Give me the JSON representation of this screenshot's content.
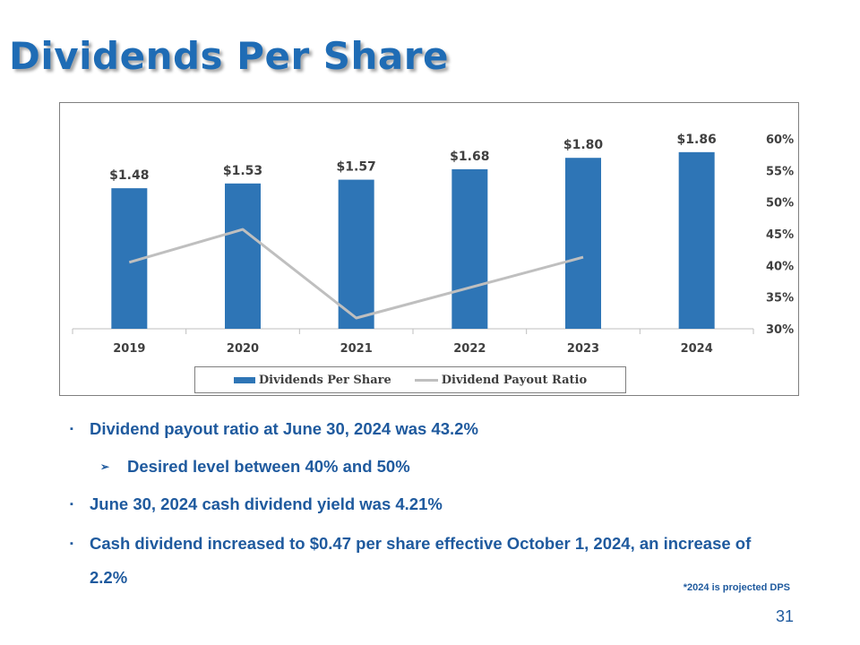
{
  "slide": {
    "title": "Dividends Per Share",
    "bullets": [
      {
        "text": "Dividend payout ratio at June 30, 2024 was 43.2%",
        "level": 1
      },
      {
        "text": "Desired level between 40% and 50%",
        "level": 2
      },
      {
        "text": "June 30, 2024 cash dividend yield was 4.21%",
        "level": 1
      },
      {
        "text": "Cash dividend increased to $0.47 per share effective October 1, 2024, an increase of 2.2%",
        "level": 1
      }
    ],
    "bullet_marks": {
      "level1": "▪",
      "level2": "➢"
    },
    "footnote": "*2024 is projected DPS",
    "page_number": "31"
  },
  "chart_data": {
    "type": "bar",
    "categories": [
      "2019",
      "2020",
      "2021",
      "2022",
      "2023",
      "2024"
    ],
    "series": [
      {
        "name": "Dividends Per Share",
        "type": "bar",
        "axis": "left",
        "color": "#2e75b6",
        "values": [
          1.48,
          1.53,
          1.57,
          1.68,
          1.8,
          1.86
        ],
        "labels": [
          "$1.48",
          "$1.53",
          "$1.57",
          "$1.68",
          "$1.80",
          "$1.86"
        ]
      },
      {
        "name": "Dividend Payout Ratio",
        "type": "line",
        "axis": "right",
        "color": "#bfbfbf",
        "values": [
          40.5,
          45.7,
          31.7,
          null,
          41.3,
          null
        ]
      }
    ],
    "left_axis": {
      "hidden": true,
      "range": [
        0.0,
        2.0
      ]
    },
    "right_axis": {
      "range": [
        30,
        60
      ],
      "ticks": [
        "30%",
        "35%",
        "40%",
        "45%",
        "50%",
        "55%",
        "60%"
      ]
    },
    "line_connects_gaps": true,
    "legend": "bottom",
    "grid": false
  }
}
